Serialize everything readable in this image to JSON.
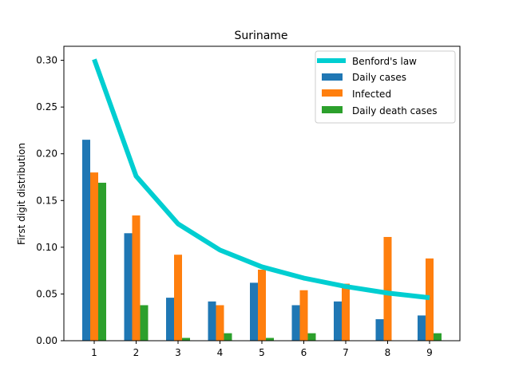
{
  "chart_data": {
    "type": "bar",
    "title": "Suriname",
    "xlabel": "",
    "ylabel": "First digit distribution",
    "categories": [
      "1",
      "2",
      "3",
      "4",
      "5",
      "6",
      "7",
      "8",
      "9"
    ],
    "ylim": [
      0,
      0.3
    ],
    "yticks": [
      "0.00",
      "0.05",
      "0.10",
      "0.15",
      "0.20",
      "0.25",
      "0.30"
    ],
    "grid": false,
    "legend_position": "top-right",
    "line": {
      "name": "Benford's law",
      "color": "#00CED1",
      "values": [
        0.301,
        0.176,
        0.125,
        0.097,
        0.079,
        0.067,
        0.058,
        0.051,
        0.046
      ]
    },
    "series": [
      {
        "name": "Daily cases",
        "color": "#1f77b4",
        "values": [
          0.215,
          0.115,
          0.046,
          0.042,
          0.062,
          0.038,
          0.042,
          0.023,
          0.027
        ]
      },
      {
        "name": "Infected",
        "color": "#ff7f0e",
        "values": [
          0.18,
          0.134,
          0.092,
          0.038,
          0.076,
          0.054,
          0.061,
          0.111,
          0.088
        ]
      },
      {
        "name": "Daily death cases",
        "color": "#2ca02c",
        "values": [
          0.169,
          0.038,
          0.003,
          0.008,
          0.003,
          0.008,
          0.0,
          0.0,
          0.008
        ]
      }
    ]
  }
}
